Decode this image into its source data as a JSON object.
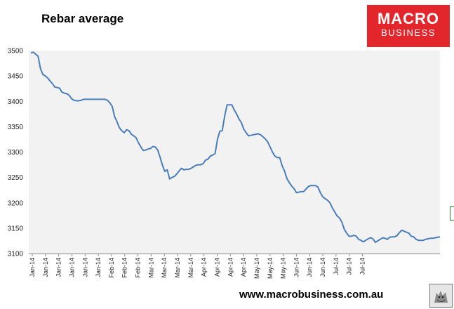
{
  "brand": {
    "logo_line1": "MACRO",
    "logo_line2": "BUSINESS",
    "logo_color": "#e3262b"
  },
  "footer": {
    "url": "www.macrobusiness.com.au"
  },
  "chart_data": {
    "type": "line",
    "title": "Rebar average",
    "xlabel": "",
    "ylabel": "",
    "ylim": [
      3100,
      3500
    ],
    "yticks": [
      3100,
      3150,
      3200,
      3250,
      3300,
      3350,
      3400,
      3450,
      3500
    ],
    "grid": false,
    "background": "#f2f2f2",
    "line_color": "#4a7ebb",
    "xtick_labels": [
      "Jan-14",
      "Jan-14",
      "Jan-14",
      "Jan-14",
      "Jan-14",
      "Jan-14",
      "Feb-14",
      "Feb-14",
      "Feb-14",
      "Mar-14",
      "Mar-14",
      "Mar-14",
      "Mar-14",
      "Apr-14",
      "Apr-14",
      "Apr-14",
      "Apr-14",
      "May-14",
      "May-14",
      "May-14",
      "Jun-14",
      "Jun-14",
      "Jun-14",
      "Jul-14",
      "Jul-14",
      "Jul-14"
    ],
    "series": [
      {
        "values": [
          3495,
          3497,
          3493,
          3489,
          3465,
          3453,
          3450,
          3446,
          3440,
          3435,
          3428,
          3427,
          3426,
          3418,
          3416,
          3415,
          3412,
          3405,
          3402,
          3401,
          3401,
          3402,
          3404,
          3404,
          3404,
          3404,
          3404,
          3404,
          3404,
          3404,
          3404,
          3404,
          3402,
          3397,
          3390,
          3370,
          3360,
          3348,
          3342,
          3338,
          3344,
          3342,
          3335,
          3332,
          3328,
          3318,
          3310,
          3303,
          3304,
          3306,
          3307,
          3311,
          3310,
          3304,
          3290,
          3274,
          3262,
          3265,
          3247,
          3250,
          3252,
          3257,
          3263,
          3268,
          3265,
          3266,
          3266,
          3268,
          3271,
          3274,
          3275,
          3275,
          3277,
          3284,
          3286,
          3292,
          3294,
          3297,
          3325,
          3341,
          3342,
          3371,
          3393,
          3393,
          3393,
          3383,
          3375,
          3365,
          3358,
          3345,
          3338,
          3332,
          3333,
          3334,
          3335,
          3336,
          3334,
          3330,
          3326,
          3320,
          3310,
          3300,
          3292,
          3289,
          3289,
          3273,
          3263,
          3248,
          3240,
          3233,
          3228,
          3220,
          3221,
          3222,
          3222,
          3227,
          3232,
          3234,
          3234,
          3234,
          3231,
          3220,
          3212,
          3208,
          3205,
          3200,
          3190,
          3182,
          3174,
          3170,
          3162,
          3148,
          3140,
          3134,
          3134,
          3136,
          3134,
          3128,
          3126,
          3123,
          3126,
          3129,
          3131,
          3129,
          3122,
          3125,
          3128,
          3131,
          3130,
          3128,
          3132,
          3133,
          3133,
          3135,
          3141,
          3146,
          3144,
          3142,
          3140,
          3134,
          3133,
          3128,
          3126,
          3126,
          3126,
          3128,
          3129,
          3130,
          3130,
          3131,
          3132,
          3133
        ]
      }
    ]
  }
}
